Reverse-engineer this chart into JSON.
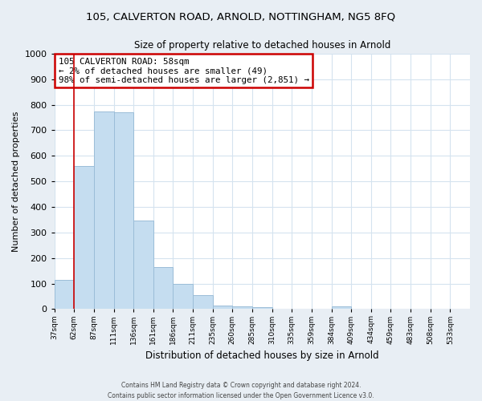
{
  "title": "105, CALVERTON ROAD, ARNOLD, NOTTINGHAM, NG5 8FQ",
  "subtitle": "Size of property relative to detached houses in Arnold",
  "xlabel": "Distribution of detached houses by size in Arnold",
  "ylabel": "Number of detached properties",
  "footer_line1": "Contains HM Land Registry data © Crown copyright and database right 2024.",
  "footer_line2": "Contains public sector information licensed under the Open Government Licence v3.0.",
  "bin_labels": [
    "37sqm",
    "62sqm",
    "87sqm",
    "111sqm",
    "136sqm",
    "161sqm",
    "186sqm",
    "211sqm",
    "235sqm",
    "260sqm",
    "285sqm",
    "310sqm",
    "335sqm",
    "359sqm",
    "384sqm",
    "409sqm",
    "434sqm",
    "459sqm",
    "483sqm",
    "508sqm",
    "533sqm"
  ],
  "bar_heights": [
    115,
    560,
    775,
    770,
    348,
    165,
    97,
    55,
    15,
    12,
    8,
    0,
    0,
    0,
    12,
    0,
    0,
    0,
    0,
    0,
    0
  ],
  "bar_color": "#c5ddf0",
  "bar_edge_color": "#9bbdd8",
  "annotation_title": "105 CALVERTON ROAD: 58sqm",
  "annotation_line2": "← 2% of detached houses are smaller (49)",
  "annotation_line3": "98% of semi-detached houses are larger (2,851) →",
  "annotation_box_color": "#ffffff",
  "annotation_border_color": "#cc0000",
  "red_line_color": "#cc0000",
  "ylim": [
    0,
    1000
  ],
  "yticks": [
    0,
    100,
    200,
    300,
    400,
    500,
    600,
    700,
    800,
    900,
    1000
  ],
  "grid_color": "#d5e3ef",
  "bg_color": "#ffffff",
  "fig_bg_color": "#e8eef4"
}
